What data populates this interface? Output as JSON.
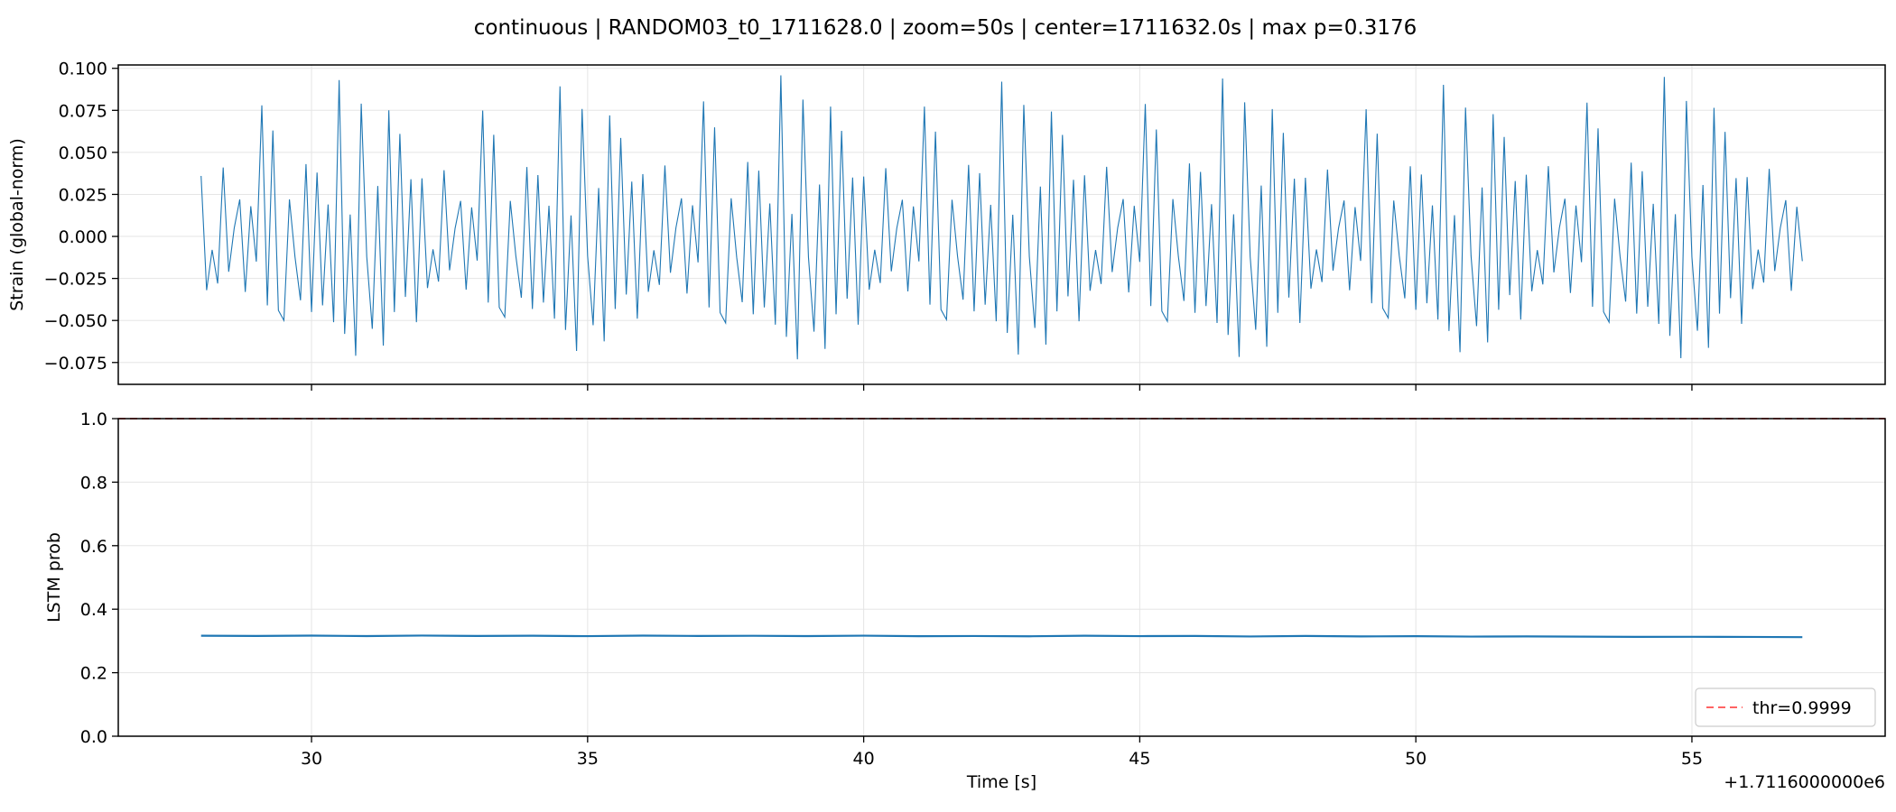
{
  "title": "continuous | RANDOM03_t0_1711628.0 | zoom=50s | center=1711632.0s | max p=0.3176",
  "colors": {
    "series": "#1f77b4",
    "threshold": "#ff4d4d",
    "grid": "#e5e5e5",
    "axis": "#000000"
  },
  "chart_data": [
    {
      "type": "line",
      "ylabel": "Strain (global-norm)",
      "xlim": [
        26.5,
        58.5
      ],
      "ylim": [
        -0.088,
        0.102
      ],
      "yticks": [
        0.1,
        0.075,
        0.05,
        0.025,
        0.0,
        -0.025,
        -0.05,
        -0.075
      ],
      "ytick_labels": [
        "0.100",
        "0.075",
        "0.050",
        "0.025",
        "0.000",
        "−0.025",
        "−0.050",
        "−0.075"
      ],
      "xticks": [
        30,
        35,
        40,
        45,
        50,
        55
      ],
      "grid": true,
      "series": [
        {
          "x_start": 28.0,
          "x_end": 57.0,
          "pattern_period": 4.0,
          "points_per_period": 40,
          "pattern_values": [
            0.036,
            -0.032,
            -0.008,
            -0.028,
            0.041,
            -0.021,
            0.005,
            0.022,
            -0.033,
            0.018,
            -0.015,
            0.078,
            -0.041,
            0.063,
            -0.044,
            -0.05,
            0.022,
            -0.012,
            -0.038,
            0.043,
            -0.045,
            0.038,
            -0.041,
            0.019,
            -0.051,
            0.093,
            -0.058,
            0.013,
            -0.071,
            0.079,
            -0.012,
            -0.055,
            0.03,
            -0.065,
            0.075,
            -0.045,
            0.061,
            -0.036,
            0.034,
            -0.051
          ],
          "amplitude_modulation": [
            1.0,
            0.96,
            1.03,
            0.99,
            1.01,
            0.97,
            1.02,
            0.98
          ]
        }
      ]
    },
    {
      "type": "line",
      "ylabel": "LSTM prob",
      "xlabel": "Time [s]",
      "x_offset_label": "+1.7116000000e6",
      "xlim": [
        26.5,
        58.5
      ],
      "ylim": [
        0.0,
        1.0
      ],
      "yticks": [
        0.0,
        0.2,
        0.4,
        0.6,
        0.8,
        1.0
      ],
      "ytick_labels": [
        "0.0",
        "0.2",
        "0.4",
        "0.6",
        "0.8",
        "1.0"
      ],
      "xticks": [
        30,
        35,
        40,
        45,
        50,
        55
      ],
      "xtick_labels": [
        "30",
        "35",
        "40",
        "45",
        "50",
        "55"
      ],
      "grid": true,
      "series": [
        {
          "x": [
            28.0,
            29.0,
            30.0,
            31.0,
            32.0,
            33.0,
            34.0,
            35.0,
            36.0,
            37.0,
            38.0,
            39.0,
            40.0,
            41.0,
            42.0,
            43.0,
            44.0,
            45.0,
            46.0,
            47.0,
            48.0,
            49.0,
            50.0,
            51.0,
            52.0,
            53.0,
            54.0,
            55.0,
            56.0,
            57.0
          ],
          "y": [
            0.3165,
            0.3158,
            0.3167,
            0.3154,
            0.3169,
            0.3156,
            0.3163,
            0.3151,
            0.3168,
            0.3157,
            0.3162,
            0.3153,
            0.3166,
            0.3149,
            0.3155,
            0.3147,
            0.3164,
            0.3152,
            0.3158,
            0.3141,
            0.3156,
            0.3143,
            0.3149,
            0.3137,
            0.3142,
            0.3135,
            0.3128,
            0.3131,
            0.3126,
            0.3119
          ]
        }
      ],
      "threshold": {
        "value": 0.9999,
        "label": "thr=0.9999"
      },
      "legend_position": "bottom-right"
    }
  ]
}
